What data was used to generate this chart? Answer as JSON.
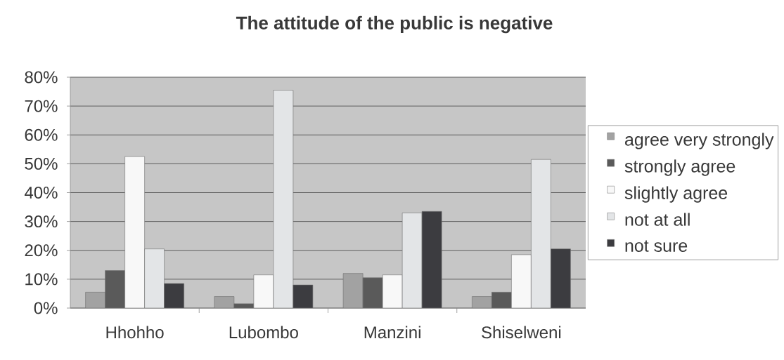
{
  "chart_data": {
    "type": "bar",
    "title": "The attitude of the public is negative",
    "categories": [
      "Hhohho",
      "Lubombo",
      "Manzini",
      "Shiselweni"
    ],
    "series": [
      {
        "name": "agree very strongly",
        "color": "#a2a2a2",
        "values": [
          5.5,
          4,
          12,
          4
        ]
      },
      {
        "name": "strongly agree",
        "color": "#5a5a5a",
        "values": [
          13,
          1.5,
          10.5,
          5.5
        ]
      },
      {
        "name": "slightly agree",
        "color": "#f8f8f8",
        "values": [
          52.5,
          11.5,
          11.5,
          18.5
        ]
      },
      {
        "name": "not at all",
        "color": "#e3e5e7",
        "values": [
          20.5,
          75.5,
          33,
          51.5
        ]
      },
      {
        "name": "not sure",
        "color": "#3c3c40",
        "values": [
          8.5,
          8,
          33.5,
          20.5
        ]
      }
    ],
    "ylim": [
      0,
      80
    ],
    "yticks": [
      {
        "value": 0,
        "label": "0%"
      },
      {
        "value": 10,
        "label": "10%"
      },
      {
        "value": 20,
        "label": "20%"
      },
      {
        "value": 30,
        "label": "30%"
      },
      {
        "value": 40,
        "label": "40%"
      },
      {
        "value": 50,
        "label": "50%"
      },
      {
        "value": 60,
        "label": "60%"
      },
      {
        "value": 70,
        "label": "70%"
      },
      {
        "value": 80,
        "label": "80%"
      }
    ],
    "grid": "y",
    "legend": "right"
  }
}
